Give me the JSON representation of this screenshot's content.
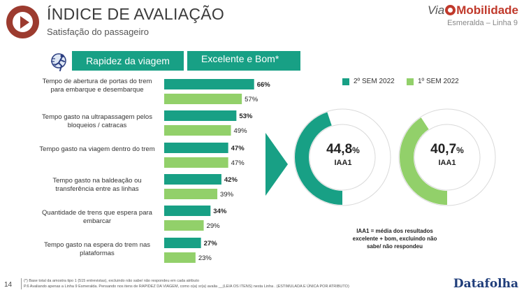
{
  "header": {
    "title": "ÍNDICE DE AVALIAÇÃO",
    "subtitle": "Satisfação do passageiro",
    "brand_via": "Via",
    "brand_mobilidade": "Mobilidade",
    "line": "Esmeralda – Linha 9"
  },
  "tabs": {
    "topic": "Rapidez da viagem",
    "metric": "Excelente e Bom*"
  },
  "colors": {
    "dark_green": "#18a085",
    "light_green": "#92d06a",
    "brand_red": "#c0392b",
    "datafolha_blue": "#1f3d7a"
  },
  "chart_data": [
    {
      "type": "bar",
      "orientation": "horizontal",
      "categories": [
        "Tempo de abertura de portas do trem para embarque e desembarque",
        "Tempo gasto na ultrapassagem pelos bloqueios / catracas",
        "Tempo gasto na viagem dentro do trem",
        "Tempo gasto na baldeação ou transferência entre as linhas",
        "Quantidade de trens que espera para embarcar",
        "Tempo gasto na espera do trem nas plataformas"
      ],
      "series": [
        {
          "name": "2º SEM 2022",
          "values": [
            66,
            53,
            47,
            42,
            34,
            27
          ],
          "labels": [
            "66%",
            "53%",
            "47%",
            "42%",
            "34%",
            "27%"
          ]
        },
        {
          "name": "1º SEM 2022",
          "values": [
            57,
            49,
            47,
            39,
            29,
            23
          ],
          "labels": [
            "57%",
            "49%",
            "47%",
            "39%",
            "29%",
            "23%"
          ]
        }
      ],
      "xlim": [
        0,
        100
      ]
    },
    {
      "type": "pie",
      "variant": "donut",
      "series": [
        {
          "name": "2º SEM 2022",
          "value": 44.8,
          "display_int": "44",
          "display_dec": ",8",
          "unit": "%",
          "sublabel": "IAA1"
        },
        {
          "name": "1º SEM 2022",
          "value": 40.7,
          "display_int": "40",
          "display_dec": ",7",
          "unit": "%",
          "sublabel": "IAA1"
        }
      ]
    }
  ],
  "note": "IAA1 = média dos resultados excelente + bom, excluindo não sabe/ não respondeu",
  "footer": {
    "page": "14",
    "footnote_1": "(*) Base total da amostra tipo 1 (515 entrevistas), excluindo não sabe/ não respondeu em cada atributo",
    "footnote_2": "P.6 Avaliando apenas a Linha 9 Esmeralda. Pensando nos itens de RAPIDEZ DA VIAGEM, como o(a) sr(a) avalia __(LEIA OS ITENS) nesta Linha . (ESTIMULADA E ÚNICA POR ATRIBUTO)",
    "source": "Datafolha"
  }
}
